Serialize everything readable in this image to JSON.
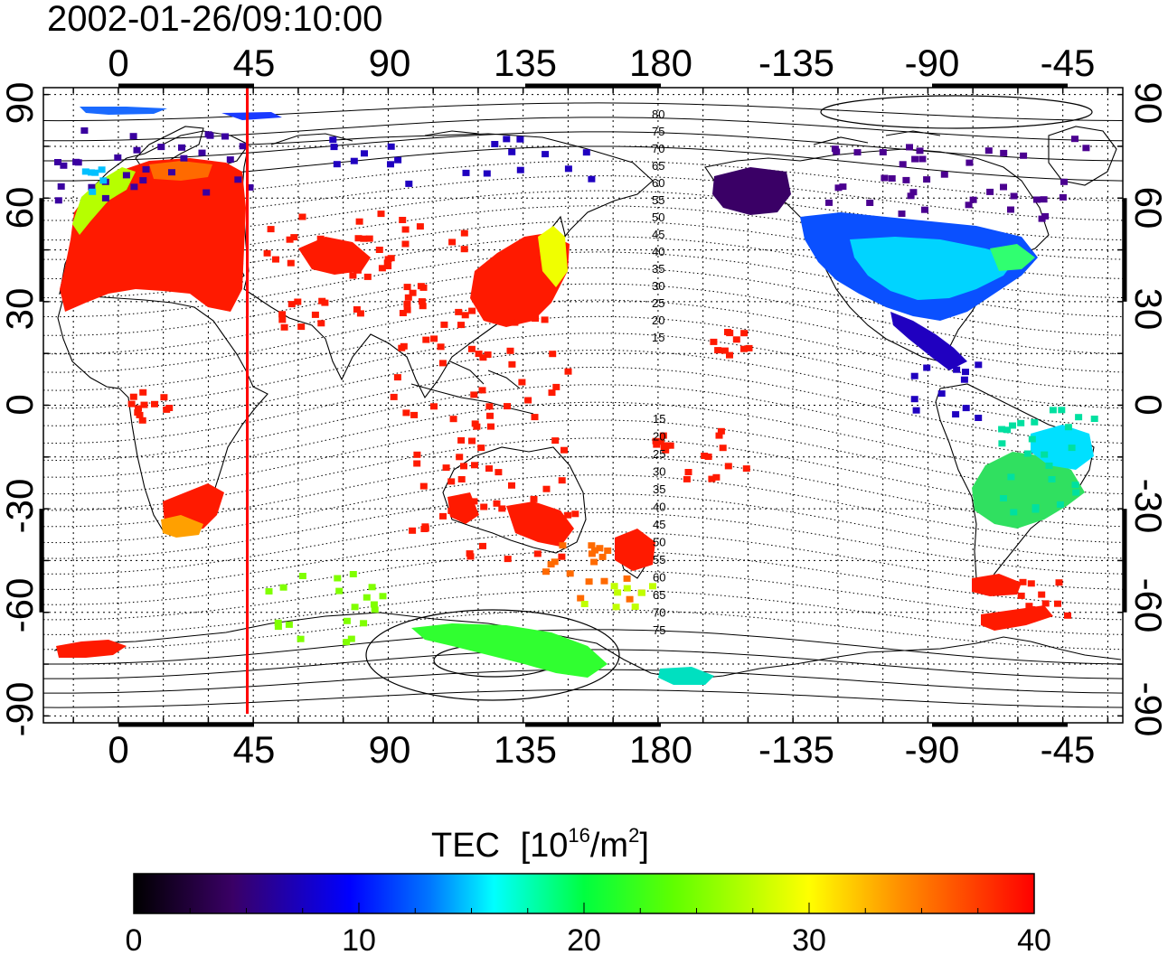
{
  "title": "2002-01-26/09:10:00",
  "map": {
    "lon_ticks_top": [
      "0",
      "45",
      "90",
      "135",
      "180",
      "-135",
      "-90",
      "-45"
    ],
    "lon_ticks_bottom": [
      "0",
      "45",
      "90",
      "135",
      "180",
      "-135",
      "-90",
      "-45"
    ],
    "lat_ticks_left": [
      "90",
      "60",
      "30",
      "0",
      "-30",
      "-60",
      "-90"
    ],
    "lat_ticks_right": [
      "90",
      "60",
      "30",
      "0",
      "-30",
      "-60",
      "-90"
    ],
    "lon_range": [
      -25,
      335
    ],
    "lat_range": [
      -92,
      92
    ],
    "terminator_lon": 43,
    "terminator_color": "#ff0000",
    "contour_labels_north": [
      "80",
      "75",
      "70",
      "65",
      "60",
      "55",
      "50",
      "45",
      "40",
      "35",
      "30",
      "25",
      "20",
      "15"
    ],
    "contour_labels_south": [
      "15",
      "20",
      "25",
      "30",
      "35",
      "40",
      "45",
      "50",
      "55",
      "60",
      "65",
      "70",
      "75"
    ]
  },
  "colorbar": {
    "title": "TEC",
    "unit": "[10",
    "unit_exp": "16",
    "unit_rest": "/m",
    "unit_sq": "2",
    "unit_close": "]",
    "ticks": [
      "0",
      "10",
      "20",
      "30",
      "40"
    ],
    "range": [
      0,
      40
    ],
    "colors": [
      "#000000",
      "#3a0066",
      "#0000ff",
      "#00a0ff",
      "#00ffff",
      "#00ff40",
      "#40ff00",
      "#ffff00",
      "#ff8000",
      "#ff0000"
    ]
  }
}
